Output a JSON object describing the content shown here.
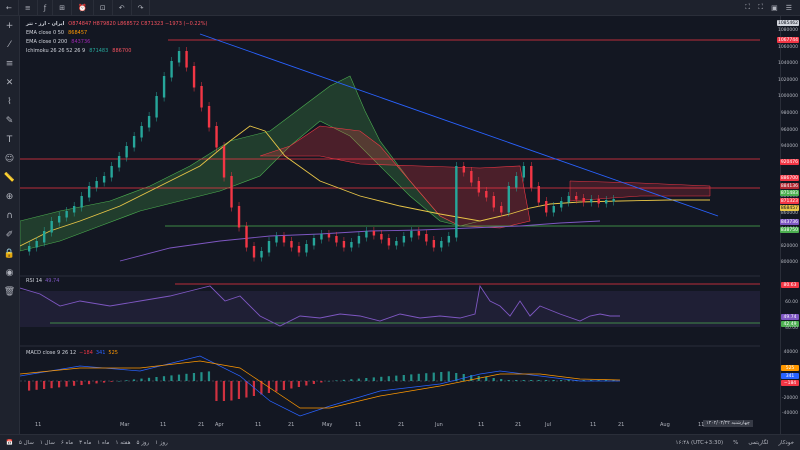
{
  "topbar": {
    "items": [
      "←",
      "≡",
      "ƒ",
      "⊞",
      "⏰",
      "⊡",
      "↶",
      "↷"
    ],
    "right_icons": [
      "⛶",
      "⛶",
      "📷",
      "☰"
    ]
  },
  "legend": {
    "symbol_title": "ایران - ارز - تتر",
    "ohlc": "O874847 H879820 L868572 C871323 −1973 (−0.22%)",
    "ema50_label": "EMA close 0 50",
    "ema50_value": "868457",
    "ema200_label": "EMA close 0 200",
    "ema200_value": "843736",
    "ichimoku_label": "Ichimoku 26 26 52 26 9",
    "ichimoku_v1": "871483",
    "ichimoku_v2": "886700"
  },
  "rsi": {
    "label": "RSI 14",
    "value": "49.74"
  },
  "macd": {
    "label": "MACD close 9 26 12",
    "v1": "−184",
    "v2": "341",
    "v3": "525"
  },
  "price_scale": {
    "ticks": [
      "1080000",
      "1060000",
      "1040000",
      "1020000",
      "1000000",
      "980000",
      "960000",
      "940000",
      "920000",
      "900000",
      "880000",
      "860000",
      "840000",
      "820000",
      "800000"
    ],
    "tags": [
      {
        "label": "1085462",
        "color": "#d1d4dc",
        "text": "#131722"
      },
      {
        "label": "1067744",
        "color": "#f23645",
        "text": "#ffffff"
      },
      {
        "label": "920476",
        "color": "#f23645",
        "text": "#ffffff"
      },
      {
        "label": "886700",
        "color": "#f23645",
        "text": "#ffffff"
      },
      {
        "label": "884136",
        "color": "#b22833",
        "text": "#ffffff"
      },
      {
        "label": "871483",
        "color": "#4caf50",
        "text": "#ffffff"
      },
      {
        "label": "871323",
        "color": "#f23645",
        "text": "#ffffff"
      },
      {
        "label": "868457",
        "color": "#e8c547",
        "text": "#131722"
      },
      {
        "label": "843736",
        "color": "#7e57c2",
        "text": "#ffffff"
      },
      {
        "label": "838750",
        "color": "#4caf50",
        "text": "#ffffff"
      }
    ],
    "rsi_tags": [
      {
        "label": "80.63",
        "color": "#f23645"
      },
      {
        "label": "49.74",
        "color": "#7e57c2"
      },
      {
        "label": "42.49",
        "color": "#4caf50"
      }
    ],
    "rsi_ticks": [
      "60.00",
      "40.00"
    ],
    "macd_ticks": [
      "40000",
      "20000",
      "0",
      "-20000",
      "-40000"
    ],
    "macd_tags": [
      {
        "label": "525",
        "color": "#ff9800"
      },
      {
        "label": "341",
        "color": "#2962ff"
      },
      {
        "label": "−184",
        "color": "#f23645"
      }
    ]
  },
  "xaxis": {
    "labels": [
      "11",
      "Mar",
      "11",
      "21",
      "Apr",
      "11",
      "21",
      "May",
      "11",
      "21",
      "Jun",
      "11",
      "21",
      "Jul",
      "11",
      "21",
      "Aug",
      "11"
    ],
    "date_box": "۱۴۰۲/۰۴/۲۲ چهارشنبه"
  },
  "bottombar": {
    "ranges": [
      "۱ روز",
      "۵ روز",
      "۱ ماه",
      "۳ ماه",
      "۶ ماه",
      "۱ هفته",
      "سال ۱",
      "۵ سال"
    ],
    "time": "۱۶:۴۸ (UTC+3:30)",
    "right": [
      "%",
      "لگاریتمی",
      "خودکار"
    ]
  },
  "colors": {
    "bg": "#131722",
    "up": "#26a69a",
    "down": "#f23645",
    "ema50": "#e8c547",
    "ema200": "#7e57c2",
    "trend": "#2962ff",
    "hline": "#f23645",
    "support": "#4caf50"
  }
}
